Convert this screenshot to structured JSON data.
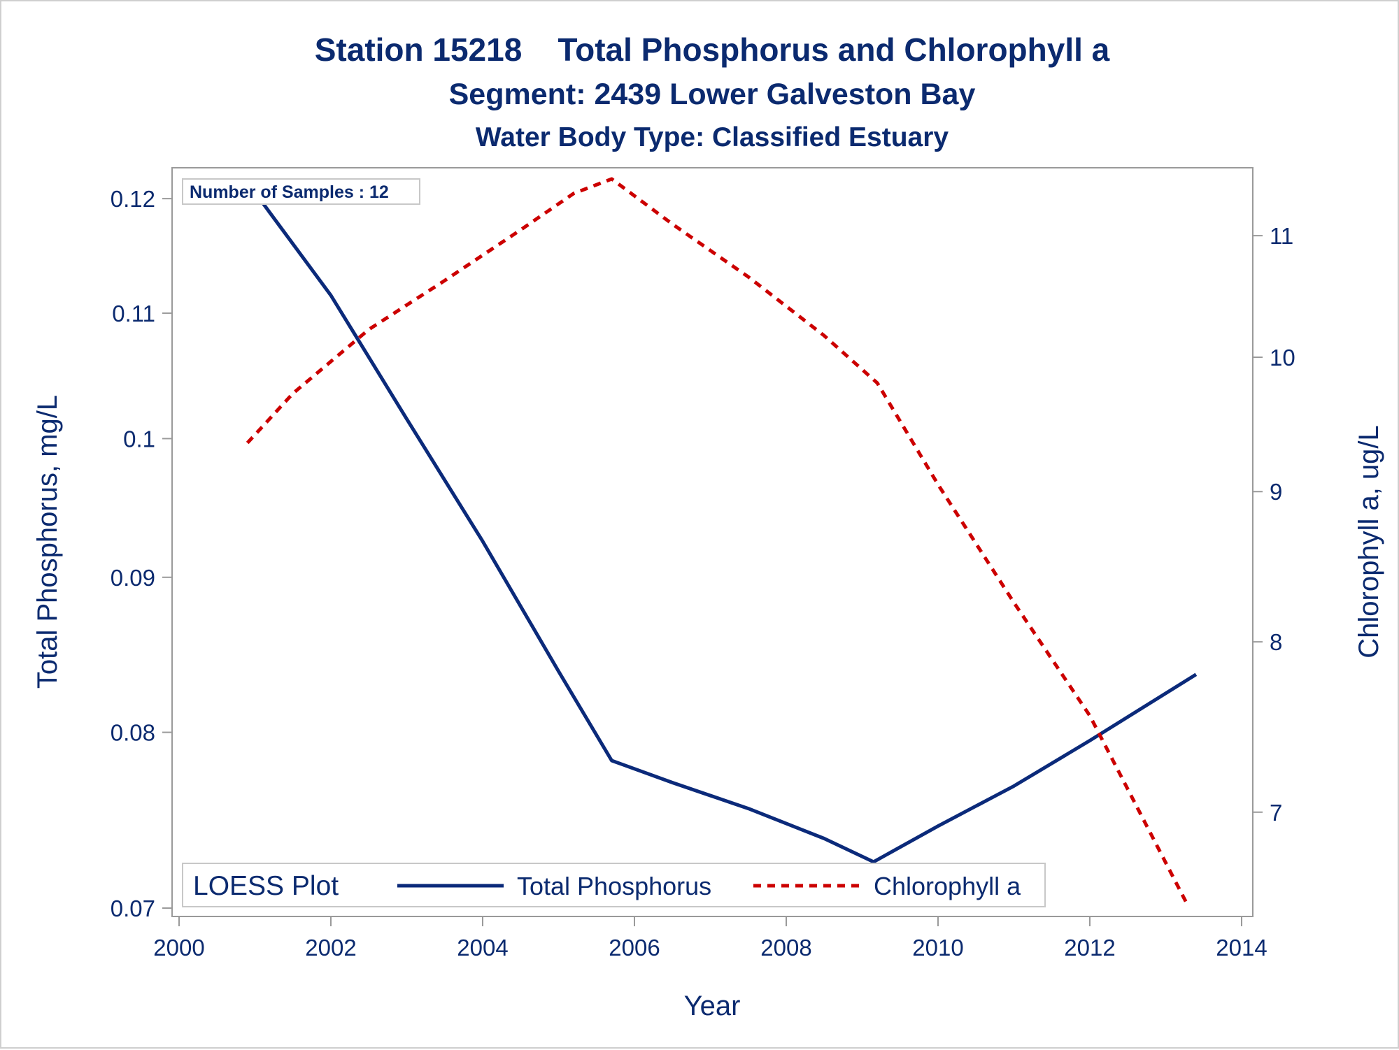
{
  "titles": {
    "line1": "Station 15218    Total Phosphorus and Chlorophyll a",
    "line2": "Segment: 2439  Lower Galveston Bay",
    "line3": "Water Body Type: Classified Estuary"
  },
  "inset_label": "Number of Samples : 12",
  "legend": {
    "title": "LOESS Plot",
    "series": [
      "Total Phosphorus",
      "Chlorophyll a"
    ]
  },
  "colors": {
    "text": "#0b2a6f",
    "phosphorus": "#0b2a7a",
    "chlorophyll": "#cc0000",
    "axis": "#9a9a9a"
  },
  "chart_data": {
    "type": "line",
    "title": "Station 15218 Total Phosphorus and Chlorophyll a",
    "xlabel": "Year",
    "ylabel_left": "Total Phosphorus, mg/L",
    "ylabel_right": "Chlorophyll a, ug/L",
    "xlim": [
      2000,
      2014
    ],
    "ylim_left": [
      0.07,
      0.122
    ],
    "ylim_right": [
      6.5,
      11.5
    ],
    "x_ticks": [
      2000,
      2002,
      2004,
      2006,
      2008,
      2010,
      2012,
      2014
    ],
    "y_left_ticks": [
      0.07,
      0.08,
      0.09,
      0.1,
      0.11,
      0.12
    ],
    "y_left_tick_labels": [
      "0.07",
      "0.08",
      "0.09",
      "0.1",
      "0.11",
      "0.12"
    ],
    "y_left_scale": "log",
    "y_right_ticks": [
      7,
      8,
      9,
      10,
      11
    ],
    "y_right_scale": "log",
    "series": [
      {
        "name": "Total Phosphorus",
        "axis": "left",
        "style": "solid",
        "x": [
          2000.9,
          2002.0,
          2003.0,
          2004.0,
          2005.0,
          2005.7,
          2006.5,
          2007.5,
          2008.5,
          2009.15,
          2010.0,
          2011.0,
          2012.0,
          2013.4
        ],
        "y": [
          0.1215,
          0.1115,
          0.1015,
          0.0925,
          0.0838,
          0.0783,
          0.077,
          0.0755,
          0.0738,
          0.0725,
          0.0745,
          0.0768,
          0.0795,
          0.0836
        ]
      },
      {
        "name": "Chlorophyll a",
        "axis": "right",
        "style": "dashed",
        "x": [
          2000.9,
          2001.5,
          2002.5,
          2003.5,
          2004.5,
          2005.2,
          2005.7,
          2006.5,
          2007.5,
          2008.5,
          2009.2,
          2010.0,
          2011.0,
          2012.0,
          2013.3
        ],
        "y": [
          9.35,
          9.72,
          10.22,
          10.62,
          11.05,
          11.37,
          11.5,
          11.1,
          10.65,
          10.17,
          9.8,
          9.05,
          8.25,
          7.55,
          6.5
        ]
      }
    ],
    "grid": false,
    "legend_position": "bottom-inside"
  }
}
